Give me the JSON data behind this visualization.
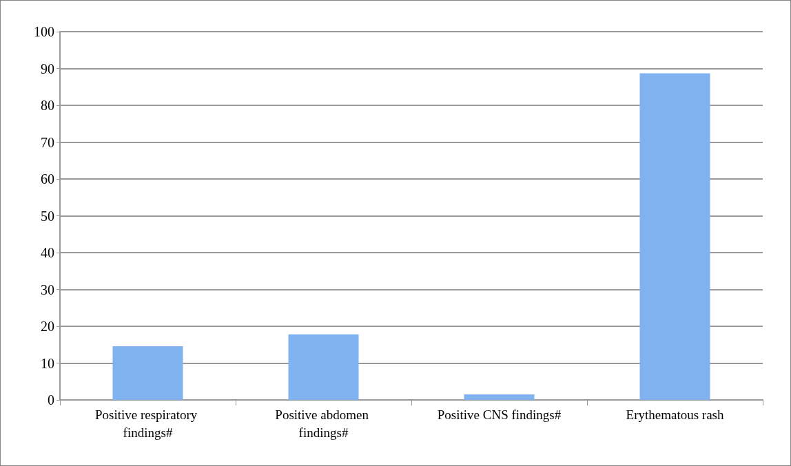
{
  "chart_data": {
    "type": "bar",
    "categories": [
      "Positive respiratory findings#",
      "Positive abdomen findings#",
      "Positive CNS findings#",
      "Erythematous rash"
    ],
    "values": [
      14.6,
      17.8,
      1.5,
      88.7
    ],
    "color": "#7fb2ee",
    "ylim": [
      0,
      100
    ],
    "yticks": [
      0,
      10,
      20,
      30,
      40,
      50,
      60,
      70,
      80,
      90,
      100
    ],
    "grid": "y"
  }
}
